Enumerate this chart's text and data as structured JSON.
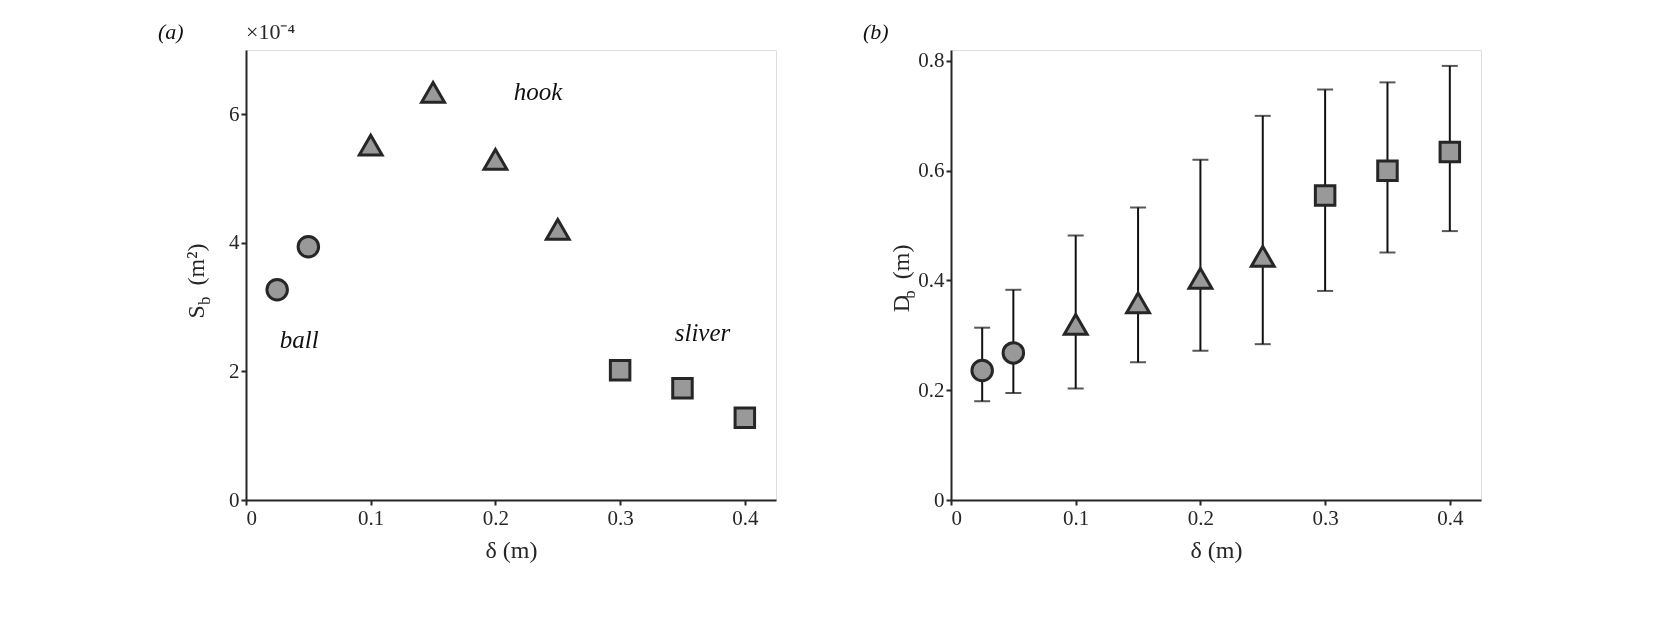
{
  "chart_data": [
    {
      "type": "scatter",
      "title": "(a)",
      "xlabel": "δ (m)",
      "ylabel": "S$_{b}$ (m²)",
      "xlim": [
        0,
        0.425
      ],
      "ylim": [
        0,
        7
      ],
      "xticks": [
        0,
        0.1,
        0.2,
        0.3,
        0.4
      ],
      "yticks": [
        0,
        2,
        4,
        6
      ],
      "grid": false,
      "annotations": [
        "×10⁻⁴"
      ],
      "series": [
        {
          "name": "ball",
          "color": "#999999",
          "marker": "circle",
          "x": [
            0.025,
            0.05
          ],
          "values": [
            3.27,
            3.94
          ]
        },
        {
          "name": "hook",
          "color": "#999999",
          "marker": "triangle",
          "x": [
            0.1,
            0.15,
            0.2,
            0.25
          ],
          "values": [
            5.52,
            6.34,
            5.3,
            4.21
          ]
        },
        {
          "name": "sliver",
          "color": "#999999",
          "marker": "square",
          "x": [
            0.3,
            0.35,
            0.4
          ],
          "values": [
            2.02,
            1.74,
            1.28
          ]
        }
      ]
    },
    {
      "type": "scatter",
      "title": "(b)",
      "xlabel": "δ (m)",
      "ylabel": "D$_{b}$ (m)",
      "xlim": [
        0,
        0.425
      ],
      "ylim": [
        0,
        0.82
      ],
      "xticks": [
        0,
        0.1,
        0.2,
        0.3,
        0.4
      ],
      "yticks": [
        0,
        0.2,
        0.4,
        0.6,
        0.8
      ],
      "grid": false,
      "series": [
        {
          "color": "#999999",
          "marker": "circle",
          "x": [
            0.025,
            0.05
          ],
          "values": [
            0.236,
            0.268
          ],
          "errors": [
            [
              0.18,
              0.314
            ],
            [
              0.195,
              0.383
            ]
          ]
        },
        {
          "color": "#999999",
          "marker": "triangle",
          "x": [
            0.1,
            0.15,
            0.2,
            0.25
          ],
          "values": [
            0.32,
            0.359,
            0.404,
            0.444
          ],
          "errors": [
            [
              0.203,
              0.482
            ],
            [
              0.251,
              0.533
            ],
            [
              0.272,
              0.62
            ],
            [
              0.284,
              0.7
            ]
          ]
        },
        {
          "color": "#999999",
          "marker": "square",
          "x": [
            0.3,
            0.35,
            0.4
          ],
          "values": [
            0.555,
            0.6,
            0.634
          ],
          "errors": [
            [
              0.381,
              0.748
            ],
            [
              0.451,
              0.761
            ],
            [
              0.49,
              0.791
            ]
          ]
        }
      ]
    }
  ]
}
